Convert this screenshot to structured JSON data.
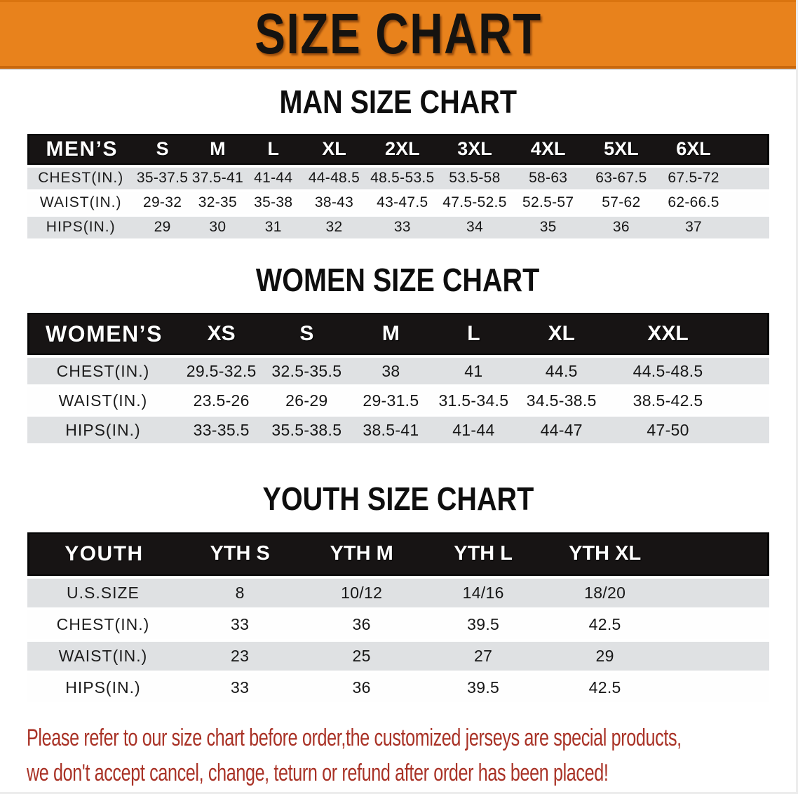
{
  "banner": {
    "title": "SIZE CHART",
    "background_color": "#E8821C",
    "text_color": "#151310"
  },
  "sections": {
    "men": {
      "heading": "MAN SIZE CHART",
      "table": {
        "corner_label": "MEN’S",
        "size_columns": [
          "S",
          "M",
          "L",
          "XL",
          "2XL",
          "3XL",
          "4XL",
          "5XL",
          "6XL"
        ],
        "rows": [
          {
            "label": "CHEST(IN.)",
            "values": [
              "35-37.5",
              "37.5-41",
              "41-44",
              "44-48.5",
              "48.5-53.5",
              "53.5-58",
              "58-63",
              "63-67.5",
              "67.5-72"
            ]
          },
          {
            "label": "WAIST(IN.)",
            "values": [
              "29-32",
              "32-35",
              "35-38",
              "38-43",
              "43-47.5",
              "47.5-52.5",
              "52.5-57",
              "57-62",
              "62-66.5"
            ]
          },
          {
            "label": "HIPS(IN.)",
            "values": [
              "29",
              "30",
              "31",
              "32",
              "33",
              "34",
              "35",
              "36",
              "37"
            ]
          }
        ]
      }
    },
    "women": {
      "heading": "WOMEN SIZE CHART",
      "table": {
        "corner_label": "WOMEN’S",
        "size_columns": [
          "XS",
          "S",
          "M",
          "L",
          "XL",
          "XXL"
        ],
        "rows": [
          {
            "label": "CHEST(IN.)",
            "values": [
              "29.5-32.5",
              "32.5-35.5",
              "38",
              "41",
              "44.5",
              "44.5-48.5"
            ]
          },
          {
            "label": "WAIST(IN.)",
            "values": [
              "23.5-26",
              "26-29",
              "29-31.5",
              "31.5-34.5",
              "34.5-38.5",
              "38.5-42.5"
            ]
          },
          {
            "label": "HIPS(IN.)",
            "values": [
              "33-35.5",
              "35.5-38.5",
              "38.5-41",
              "41-44",
              "44-47",
              "47-50"
            ]
          }
        ]
      }
    },
    "youth": {
      "heading": "YOUTH SIZE CHART",
      "table": {
        "corner_label": "YOUTH",
        "size_columns": [
          "YTH S",
          "YTH M",
          "YTH L",
          "YTH XL"
        ],
        "rows": [
          {
            "label": "U.S.SIZE",
            "values": [
              "8",
              "10/12",
              "14/16",
              "18/20"
            ]
          },
          {
            "label": "CHEST(IN.)",
            "values": [
              "33",
              "36",
              "39.5",
              "42.5"
            ]
          },
          {
            "label": "WAIST(IN.)",
            "values": [
              "23",
              "25",
              "27",
              "29"
            ]
          },
          {
            "label": "HIPS(IN.)",
            "values": [
              "33",
              "36",
              "39.5",
              "42.5"
            ]
          }
        ]
      }
    }
  },
  "disclaimer": {
    "color": "#A93226",
    "lines": [
      "Please refer to our size chart before order,the customized jerseys are special products,",
      "we don't accept cancel, change, teturn or refund after order has been placed!"
    ]
  }
}
